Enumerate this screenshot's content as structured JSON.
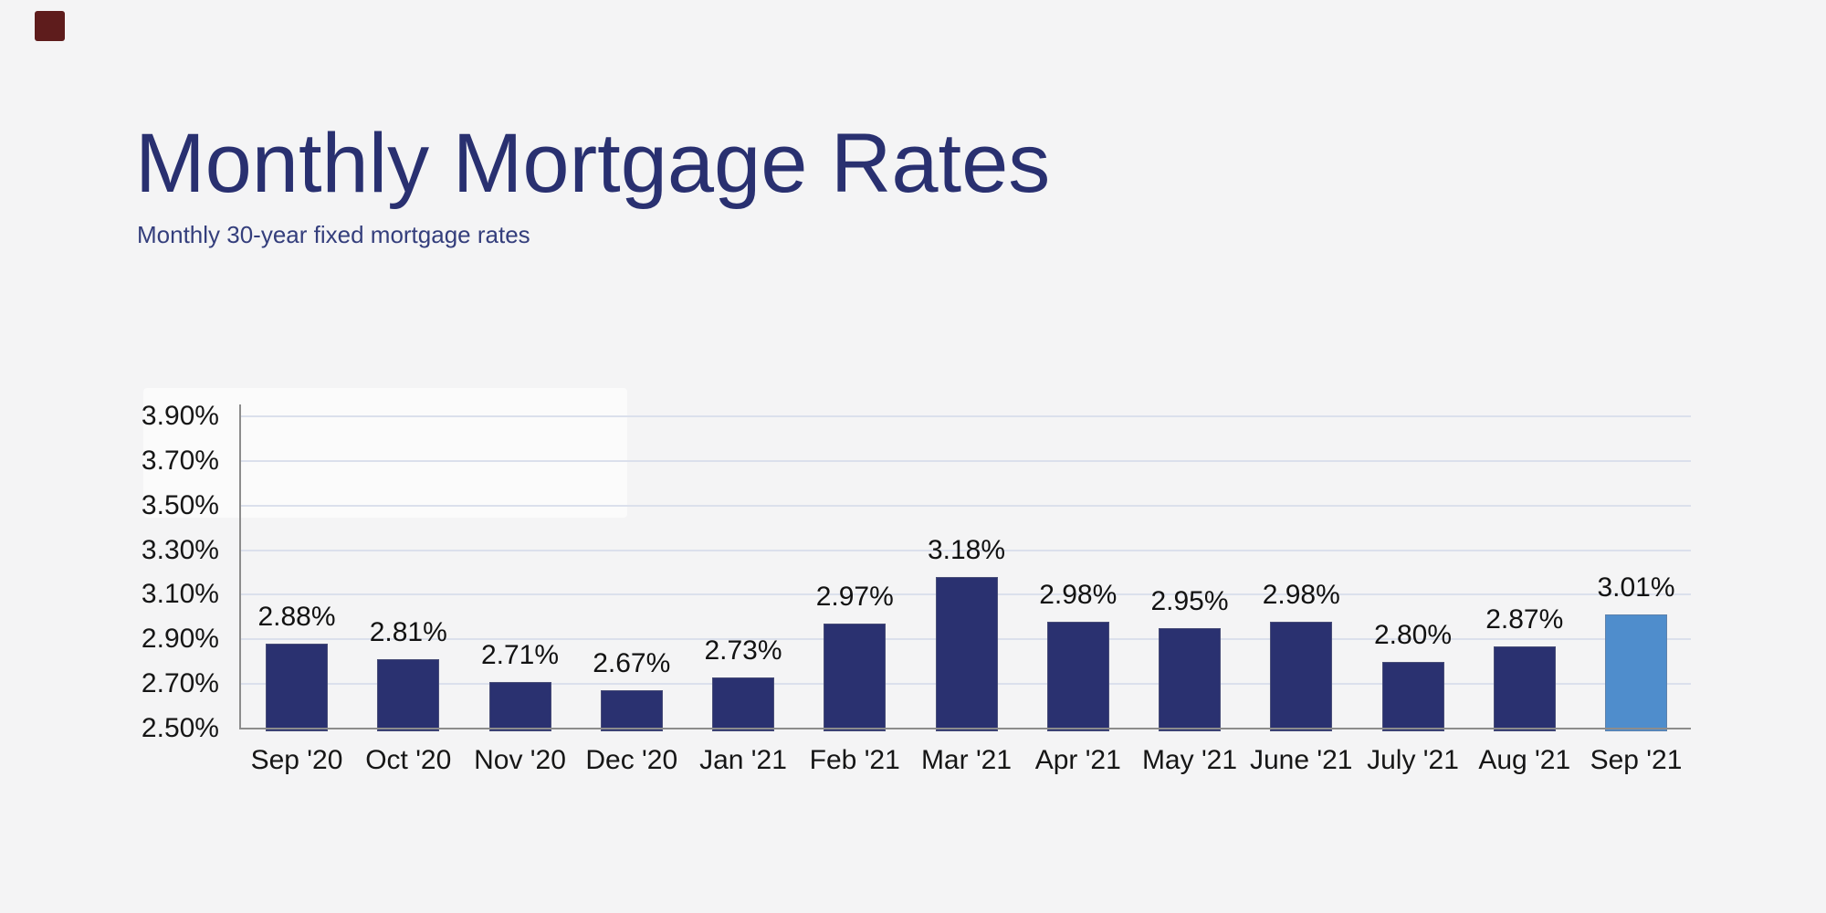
{
  "page": {
    "background_color": "#f4f4f5",
    "corner_marker_color": "#5e1c1c"
  },
  "header": {
    "title": "Monthly Mortgage Rates",
    "subtitle": "Monthly 30-year fixed mortgage rates",
    "title_color": "#293070",
    "subtitle_color": "#343e7c"
  },
  "chart_data": {
    "type": "bar",
    "title": "Monthly Mortgage Rates",
    "subtitle": "Monthly 30-year fixed mortgage rates",
    "categories": [
      "Sep '20",
      "Oct '20",
      "Nov '20",
      "Dec '20",
      "Jan '21",
      "Feb '21",
      "Mar '21",
      "Apr '21",
      "May '21",
      "June '21",
      "July '21",
      "Aug '21",
      "Sep '21"
    ],
    "values": [
      2.88,
      2.81,
      2.71,
      2.67,
      2.73,
      2.97,
      3.18,
      2.98,
      2.95,
      2.98,
      2.8,
      2.87,
      3.01
    ],
    "value_labels": [
      "2.88%",
      "2.81%",
      "2.71%",
      "2.67%",
      "2.73%",
      "2.97%",
      "3.18%",
      "2.98%",
      "2.95%",
      "2.98%",
      "2.80%",
      "2.87%",
      "3.01%"
    ],
    "xlabel": "",
    "ylabel": "",
    "ylim": [
      2.5,
      3.9
    ],
    "ytick_step": 0.2,
    "ytick_labels": [
      "3.90%",
      "3.70%",
      "3.50%",
      "3.30%",
      "3.10%",
      "2.90%",
      "2.70%",
      "2.50%"
    ],
    "grid": true,
    "legend": false,
    "bar_color": "#2a3170",
    "highlight_bar_color": "#4f8dcc",
    "highlight_index": 12,
    "gridline_color": "#dbe0ec",
    "axis_color": "#8c8c8c",
    "label_color": "#161616"
  }
}
